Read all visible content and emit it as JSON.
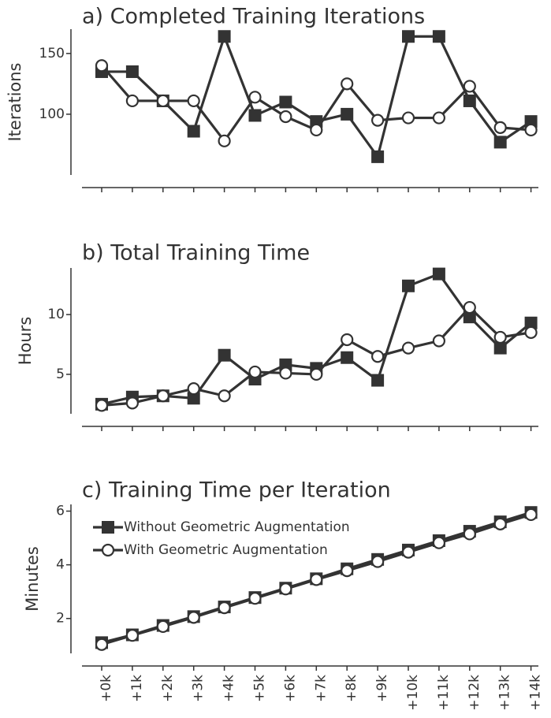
{
  "colors": {
    "ink": "#333333",
    "marker_fill_open": "#ffffff"
  },
  "x_tick_labels": [
    "+0k",
    "+1k",
    "+2k",
    "+3k",
    "+4k",
    "+5k",
    "+6k",
    "+7k",
    "+8k",
    "+9k",
    "+10k",
    "+11k",
    "+12k",
    "+13k",
    "+14k"
  ],
  "legend": {
    "without": "Without Geometric Augmentation",
    "with": "With Geometric Augmentation"
  },
  "chart_data": [
    {
      "type": "line",
      "id": "a",
      "title": "a) Completed Training Iterations",
      "ylabel": "Iterations",
      "ylim": [
        50,
        170
      ],
      "yticks": [
        100,
        150
      ],
      "categories": [
        "+0k",
        "+1k",
        "+2k",
        "+3k",
        "+4k",
        "+5k",
        "+6k",
        "+7k",
        "+8k",
        "+9k",
        "+10k",
        "+11k",
        "+12k",
        "+13k",
        "+14k"
      ],
      "series": [
        {
          "name": "Without Geometric Augmentation",
          "marker": "square",
          "values": [
            135,
            135,
            111,
            86,
            164,
            99,
            110,
            94,
            100,
            65,
            164,
            164,
            111,
            77,
            94
          ]
        },
        {
          "name": "With Geometric Augmentation",
          "marker": "circle",
          "values": [
            140,
            111,
            111,
            111,
            78,
            114,
            98,
            87,
            125,
            95,
            97,
            97,
            123,
            89,
            87
          ]
        }
      ]
    },
    {
      "type": "line",
      "id": "b",
      "title": "b) Total Training Time",
      "ylabel": "Hours",
      "ylim": [
        1.7,
        13.9
      ],
      "yticks": [
        5,
        10
      ],
      "categories": [
        "+0k",
        "+1k",
        "+2k",
        "+3k",
        "+4k",
        "+5k",
        "+6k",
        "+7k",
        "+8k",
        "+9k",
        "+10k",
        "+11k",
        "+12k",
        "+13k",
        "+14k"
      ],
      "series": [
        {
          "name": "Without Geometric Augmentation",
          "marker": "square",
          "values": [
            2.5,
            3.1,
            3.2,
            3.0,
            6.6,
            4.6,
            5.8,
            5.5,
            6.4,
            4.5,
            12.4,
            13.4,
            9.8,
            7.2,
            9.3
          ]
        },
        {
          "name": "With Geometric Augmentation",
          "marker": "circle",
          "values": [
            2.4,
            2.6,
            3.2,
            3.8,
            3.2,
            5.2,
            5.1,
            5.0,
            7.9,
            6.5,
            7.2,
            7.8,
            10.6,
            8.1,
            8.5
          ]
        }
      ]
    },
    {
      "type": "line",
      "id": "c",
      "title": "c) Training Time per Iteration",
      "ylabel": "Minutes",
      "ylim": [
        0.7,
        6.25
      ],
      "yticks": [
        2,
        4,
        6
      ],
      "categories": [
        "+0k",
        "+1k",
        "+2k",
        "+3k",
        "+4k",
        "+5k",
        "+6k",
        "+7k",
        "+8k",
        "+9k",
        "+10k",
        "+11k",
        "+12k",
        "+13k",
        "+14k"
      ],
      "series": [
        {
          "name": "Without Geometric Augmentation",
          "marker": "square",
          "values": [
            1.1,
            1.39,
            1.74,
            2.07,
            2.43,
            2.78,
            3.13,
            3.48,
            3.85,
            4.2,
            4.55,
            4.9,
            5.25,
            5.6,
            5.95
          ]
        },
        {
          "name": "With Geometric Augmentation",
          "marker": "circle",
          "values": [
            1.03,
            1.37,
            1.7,
            2.04,
            2.4,
            2.75,
            3.1,
            3.45,
            3.78,
            4.12,
            4.47,
            4.82,
            5.15,
            5.52,
            5.87
          ]
        }
      ]
    }
  ]
}
